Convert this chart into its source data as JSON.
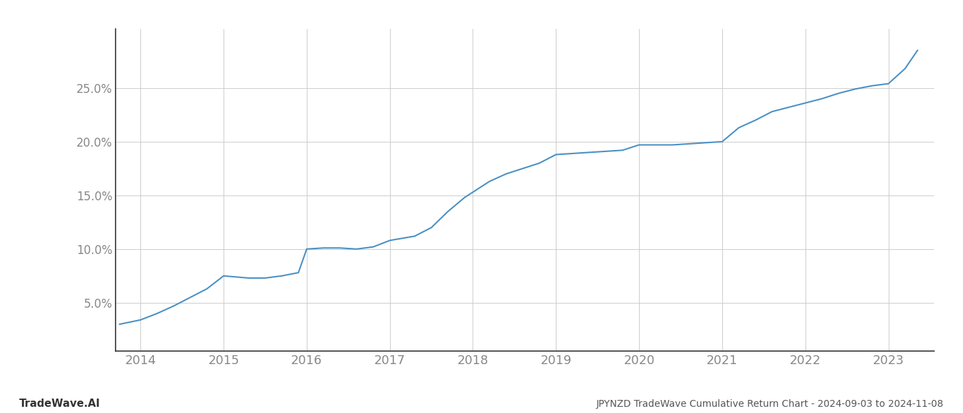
{
  "title": "",
  "footer_left": "TradeWave.AI",
  "footer_right": "JPYNZD TradeWave Cumulative Return Chart - 2024-09-03 to 2024-11-08",
  "line_color": "#4a90c4",
  "background_color": "#ffffff",
  "grid_color": "#cccccc",
  "text_color": "#888888",
  "footer_color_left": "#333333",
  "footer_color_right": "#555555",
  "xlim": [
    2013.7,
    2023.55
  ],
  "ylim": [
    0.005,
    0.305
  ],
  "x_ticks": [
    2014,
    2015,
    2016,
    2017,
    2018,
    2019,
    2020,
    2021,
    2022,
    2023
  ],
  "y_ticks": [
    0.05,
    0.1,
    0.15,
    0.2,
    0.25
  ],
  "years": [
    2013.75,
    2014.0,
    2014.2,
    2014.4,
    2014.6,
    2014.8,
    2015.0,
    2015.15,
    2015.3,
    2015.5,
    2015.7,
    2015.9,
    2016.0,
    2016.2,
    2016.4,
    2016.6,
    2016.8,
    2017.0,
    2017.15,
    2017.3,
    2017.5,
    2017.7,
    2017.9,
    2018.0,
    2018.2,
    2018.4,
    2018.6,
    2018.8,
    2019.0,
    2019.2,
    2019.4,
    2019.6,
    2019.8,
    2020.0,
    2020.2,
    2020.4,
    2020.6,
    2020.8,
    2021.0,
    2021.2,
    2021.4,
    2021.6,
    2021.8,
    2022.0,
    2022.2,
    2022.4,
    2022.6,
    2022.8,
    2023.0,
    2023.2,
    2023.35
  ],
  "values": [
    0.03,
    0.034,
    0.04,
    0.047,
    0.055,
    0.063,
    0.075,
    0.074,
    0.073,
    0.073,
    0.075,
    0.078,
    0.1,
    0.101,
    0.101,
    0.1,
    0.102,
    0.108,
    0.11,
    0.112,
    0.12,
    0.135,
    0.148,
    0.153,
    0.163,
    0.17,
    0.175,
    0.18,
    0.188,
    0.189,
    0.19,
    0.191,
    0.192,
    0.197,
    0.197,
    0.197,
    0.198,
    0.199,
    0.2,
    0.213,
    0.22,
    0.228,
    0.232,
    0.236,
    0.24,
    0.245,
    0.249,
    0.252,
    0.254,
    0.268,
    0.285
  ]
}
